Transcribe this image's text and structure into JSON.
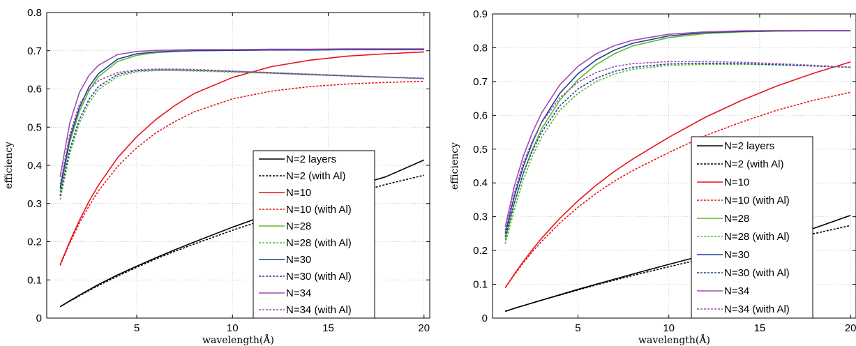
{
  "chart_data": [
    {
      "type": "line",
      "title": "",
      "xlabel": "wavelength(Å)",
      "ylabel": "efficiency",
      "xlim": [
        0.3,
        20.3
      ],
      "ylim": [
        0,
        0.8
      ],
      "xticks": [
        5,
        10,
        15,
        20
      ],
      "yticks": [
        0,
        0.1,
        0.2,
        0.3,
        0.4,
        0.5,
        0.6,
        0.7,
        0.8
      ],
      "xtick_labels": [
        "5",
        "10",
        "15",
        "20"
      ],
      "ytick_labels": [
        "0",
        "0.1",
        "0.2",
        "0.3",
        "0.4",
        "0.5",
        "0.6",
        "0.7",
        "0.8"
      ],
      "grid": true,
      "legend_position": "lower-right",
      "x": [
        1,
        1.5,
        2,
        2.5,
        3,
        4,
        5,
        6,
        7,
        8,
        10,
        12,
        14,
        16,
        18,
        20
      ],
      "series": [
        {
          "name": "N=2 layers",
          "color": "#000000",
          "dash": "solid",
          "values": [
            0.03,
            0.045,
            0.06,
            0.074,
            0.088,
            0.113,
            0.136,
            0.158,
            0.179,
            0.199,
            0.238,
            0.274,
            0.308,
            0.34,
            0.37,
            0.414
          ]
        },
        {
          "name": "N=2 (with Al)",
          "color": "#000000",
          "dash": "dashed",
          "values": [
            0.03,
            0.044,
            0.058,
            0.072,
            0.085,
            0.11,
            0.133,
            0.155,
            0.175,
            0.194,
            0.23,
            0.263,
            0.294,
            0.322,
            0.35,
            0.374
          ]
        },
        {
          "name": "N=10",
          "color": "#e8131b",
          "dash": "solid",
          "values": [
            0.14,
            0.2,
            0.255,
            0.305,
            0.348,
            0.42,
            0.475,
            0.52,
            0.557,
            0.588,
            0.63,
            0.658,
            0.675,
            0.686,
            0.692,
            0.697
          ]
        },
        {
          "name": "N=10 (with Al)",
          "color": "#e8131b",
          "dash": "dashed",
          "values": [
            0.138,
            0.196,
            0.248,
            0.293,
            0.333,
            0.397,
            0.446,
            0.485,
            0.515,
            0.54,
            0.574,
            0.594,
            0.606,
            0.613,
            0.617,
            0.62
          ]
        },
        {
          "name": "N=28",
          "color": "#5cb82d",
          "dash": "solid",
          "values": [
            0.33,
            0.46,
            0.54,
            0.595,
            0.632,
            0.672,
            0.688,
            0.695,
            0.698,
            0.7,
            0.701,
            0.702,
            0.702,
            0.703,
            0.703,
            0.703
          ]
        },
        {
          "name": "N=28 (with Al)",
          "color": "#5cb82d",
          "dash": "dashed",
          "values": [
            0.31,
            0.43,
            0.51,
            0.563,
            0.598,
            0.633,
            0.645,
            0.648,
            0.648,
            0.647,
            0.644,
            0.641,
            0.637,
            0.634,
            0.63,
            0.627
          ]
        },
        {
          "name": "N=30",
          "color": "#1f3d99",
          "dash": "solid",
          "values": [
            0.34,
            0.47,
            0.55,
            0.605,
            0.64,
            0.678,
            0.692,
            0.697,
            0.699,
            0.7,
            0.701,
            0.702,
            0.702,
            0.703,
            0.703,
            0.703
          ]
        },
        {
          "name": "N=30 (with Al)",
          "color": "#1f3d99",
          "dash": "dashed",
          "values": [
            0.32,
            0.44,
            0.52,
            0.572,
            0.606,
            0.638,
            0.648,
            0.65,
            0.65,
            0.649,
            0.646,
            0.642,
            0.638,
            0.634,
            0.631,
            0.628
          ]
        },
        {
          "name": "N=34",
          "color": "#a04db0",
          "dash": "solid",
          "values": [
            0.37,
            0.51,
            0.59,
            0.635,
            0.662,
            0.69,
            0.698,
            0.701,
            0.702,
            0.703,
            0.703,
            0.704,
            0.704,
            0.705,
            0.705,
            0.705
          ]
        },
        {
          "name": "N=34 (with Al)",
          "color": "#a04db0",
          "dash": "dashed",
          "values": [
            0.35,
            0.48,
            0.56,
            0.598,
            0.622,
            0.643,
            0.65,
            0.652,
            0.652,
            0.651,
            0.647,
            0.643,
            0.639,
            0.635,
            0.631,
            0.627
          ]
        }
      ]
    },
    {
      "type": "line",
      "title": "",
      "xlabel": "wavelength(Å)",
      "ylabel": "efficiency",
      "xlim": [
        0.3,
        20.3
      ],
      "ylim": [
        0,
        0.9
      ],
      "xticks": [
        5,
        10,
        15,
        20
      ],
      "yticks": [
        0,
        0.1,
        0.2,
        0.3,
        0.4,
        0.5,
        0.6,
        0.7,
        0.8,
        0.9
      ],
      "xtick_labels": [
        "5",
        "10",
        "15",
        "20"
      ],
      "ytick_labels": [
        "0",
        "0.1",
        "0.2",
        "0.3",
        "0.4",
        "0.5",
        "0.6",
        "0.7",
        "0.8",
        "0.9"
      ],
      "grid": true,
      "legend_position": "lower-right",
      "x": [
        1,
        1.5,
        2,
        2.5,
        3,
        4,
        5,
        6,
        7,
        8,
        10,
        12,
        14,
        16,
        18,
        20
      ],
      "series": [
        {
          "name": "N=2 layers",
          "color": "#000000",
          "dash": "solid",
          "values": [
            0.02,
            0.029,
            0.037,
            0.045,
            0.053,
            0.069,
            0.085,
            0.1,
            0.115,
            0.13,
            0.159,
            0.187,
            0.214,
            0.24,
            0.266,
            0.304
          ]
        },
        {
          "name": "N=2 (with Al)",
          "color": "#000000",
          "dash": "dashed",
          "values": [
            0.02,
            0.029,
            0.037,
            0.045,
            0.053,
            0.068,
            0.083,
            0.098,
            0.112,
            0.126,
            0.152,
            0.177,
            0.201,
            0.225,
            0.25,
            0.274
          ]
        },
        {
          "name": "N=10",
          "color": "#e8131b",
          "dash": "solid",
          "values": [
            0.09,
            0.13,
            0.168,
            0.203,
            0.236,
            0.295,
            0.347,
            0.393,
            0.434,
            0.47,
            0.535,
            0.594,
            0.644,
            0.688,
            0.725,
            0.758
          ]
        },
        {
          "name": "N=10 (with Al)",
          "color": "#e8131b",
          "dash": "dashed",
          "values": [
            0.09,
            0.128,
            0.164,
            0.197,
            0.227,
            0.281,
            0.328,
            0.369,
            0.405,
            0.436,
            0.49,
            0.54,
            0.58,
            0.616,
            0.645,
            0.668
          ]
        },
        {
          "name": "N=28",
          "color": "#5cb82d",
          "dash": "solid",
          "values": [
            0.23,
            0.34,
            0.43,
            0.5,
            0.56,
            0.645,
            0.705,
            0.75,
            0.782,
            0.805,
            0.83,
            0.842,
            0.847,
            0.849,
            0.85,
            0.85
          ]
        },
        {
          "name": "N=28 (with Al)",
          "color": "#5cb82d",
          "dash": "dashed",
          "values": [
            0.22,
            0.32,
            0.41,
            0.48,
            0.535,
            0.615,
            0.665,
            0.7,
            0.722,
            0.736,
            0.748,
            0.751,
            0.751,
            0.749,
            0.746,
            0.743
          ]
        },
        {
          "name": "N=30",
          "color": "#1f3d99",
          "dash": "solid",
          "values": [
            0.25,
            0.36,
            0.45,
            0.52,
            0.58,
            0.665,
            0.723,
            0.764,
            0.793,
            0.813,
            0.835,
            0.845,
            0.848,
            0.85,
            0.85,
            0.85
          ]
        },
        {
          "name": "N=30 (with Al)",
          "color": "#1f3d99",
          "dash": "dashed",
          "values": [
            0.24,
            0.34,
            0.43,
            0.495,
            0.55,
            0.628,
            0.678,
            0.71,
            0.73,
            0.742,
            0.752,
            0.754,
            0.753,
            0.75,
            0.746,
            0.742
          ]
        },
        {
          "name": "N=34",
          "color": "#a04db0",
          "dash": "solid",
          "values": [
            0.27,
            0.39,
            0.48,
            0.55,
            0.607,
            0.69,
            0.745,
            0.782,
            0.806,
            0.822,
            0.84,
            0.847,
            0.85,
            0.851,
            0.851,
            0.851
          ]
        },
        {
          "name": "N=34 (with Al)",
          "color": "#a04db0",
          "dash": "dashed",
          "values": [
            0.26,
            0.37,
            0.46,
            0.525,
            0.578,
            0.652,
            0.698,
            0.727,
            0.744,
            0.753,
            0.759,
            0.759,
            0.757,
            0.753,
            0.748,
            0.742
          ]
        }
      ]
    }
  ]
}
